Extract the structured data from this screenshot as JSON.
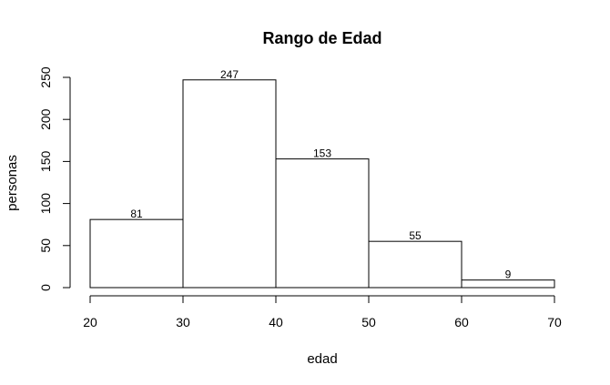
{
  "chart_data": {
    "type": "bar",
    "title": "Rango de Edad",
    "xlabel": "edad",
    "ylabel": "personas",
    "bins": [
      [
        20,
        30
      ],
      [
        30,
        40
      ],
      [
        40,
        50
      ],
      [
        50,
        60
      ],
      [
        60,
        70
      ]
    ],
    "values": [
      81,
      247,
      153,
      55,
      9
    ],
    "xlim": [
      20,
      70
    ],
    "ylim": [
      0,
      250
    ],
    "xticks": [
      20,
      30,
      40,
      50,
      60,
      70
    ],
    "yticks": [
      0,
      50,
      100,
      150,
      200,
      250
    ],
    "grid": false,
    "legend": "none",
    "colors": {
      "bar_fill": "#ffffff",
      "bar_stroke": "#000000"
    }
  }
}
